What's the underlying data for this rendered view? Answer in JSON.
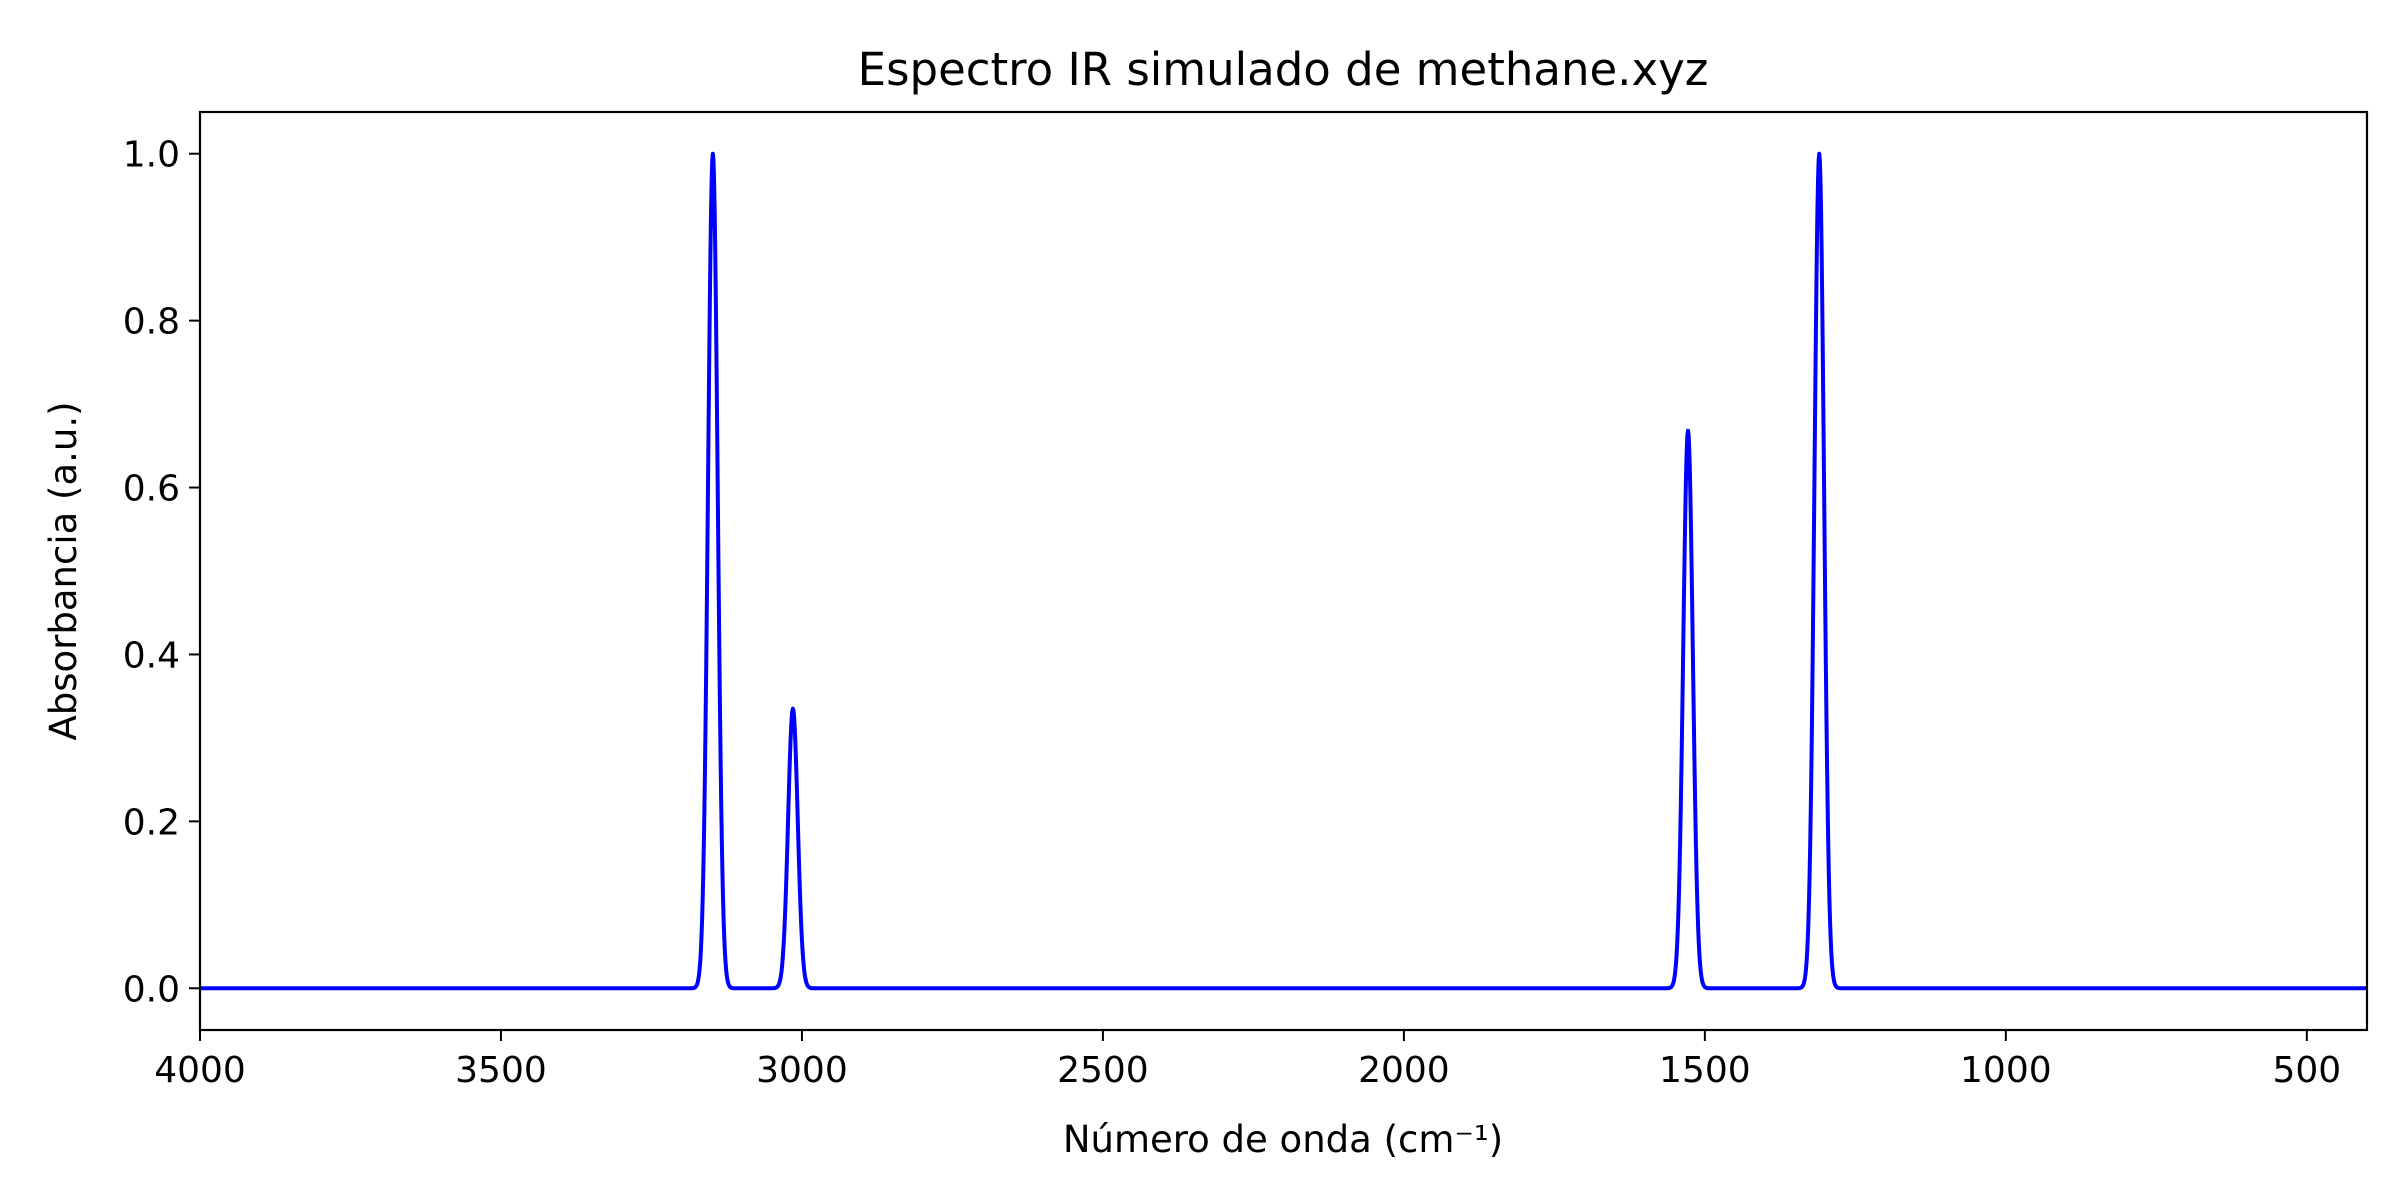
{
  "chart_data": {
    "type": "line",
    "title": "Espectro IR simulado de methane.xyz",
    "xlabel": "Número de onda (cm⁻¹)",
    "ylabel": "Absorbancia (a.u.)",
    "xlim": [
      4000,
      400
    ],
    "ylim": [
      -0.05,
      1.05
    ],
    "x_reversed": true,
    "xticks": [
      4000,
      3500,
      3000,
      2500,
      2000,
      1500,
      1000,
      500
    ],
    "yticks": [
      0.0,
      0.2,
      0.4,
      0.6,
      0.8,
      1.0
    ],
    "xtick_labels": [
      "4000",
      "3500",
      "3000",
      "2500",
      "2000",
      "1500",
      "1000",
      "500"
    ],
    "ytick_labels": [
      "0.0",
      "0.2",
      "0.4",
      "0.6",
      "0.8",
      "1.0"
    ],
    "grid": false,
    "series": [
      {
        "color": "#0000ff",
        "peaks": [
          {
            "x": 3148,
            "y": 1.0
          },
          {
            "x": 3015,
            "y": 0.335
          },
          {
            "x": 1528,
            "y": 0.668
          },
          {
            "x": 1310,
            "y": 1.0
          }
        ],
        "peak_width": 8,
        "baseline": 0.0
      }
    ]
  }
}
